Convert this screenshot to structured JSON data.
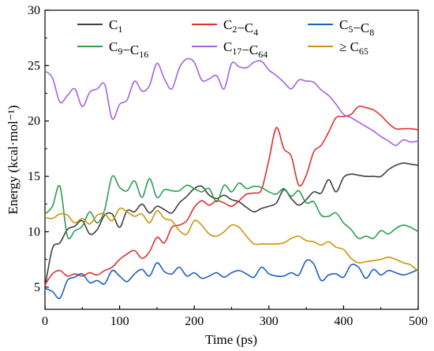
{
  "chart_data": {
    "type": "line",
    "title": "",
    "xlabel": "Time (ps)",
    "ylabel": "Energy (kcal·mol⁻¹)",
    "xlim": [
      0,
      500
    ],
    "ylim": [
      3,
      30
    ],
    "xticks": [
      "0",
      "100",
      "200",
      "300",
      "400",
      "500"
    ],
    "yticks": [
      "5",
      "10",
      "15",
      "20",
      "25",
      "30"
    ],
    "grid": false,
    "legend": "top",
    "series": [
      {
        "name": "C1",
        "label_main": "C",
        "label_sub1": "1",
        "color": "#404040",
        "x": [
          0,
          10,
          20,
          30,
          40,
          50,
          60,
          70,
          80,
          90,
          100,
          110,
          120,
          130,
          140,
          150,
          160,
          170,
          180,
          190,
          200,
          210,
          220,
          230,
          240,
          250,
          260,
          270,
          280,
          290,
          300,
          310,
          320,
          330,
          340,
          350,
          360,
          370,
          380,
          390,
          400,
          410,
          420,
          430,
          440,
          450,
          460,
          470,
          480,
          490,
          500
        ],
        "y": [
          5.0,
          8.5,
          9.0,
          10.2,
          10.5,
          11.0,
          9.8,
          10.2,
          11.5,
          11.6,
          10.4,
          11.9,
          11.8,
          12.5,
          11.7,
          12.3,
          12.0,
          11.7,
          12.6,
          13.2,
          13.9,
          14.1,
          13.3,
          13.0,
          13.3,
          12.9,
          12.7,
          12.2,
          11.8,
          12.1,
          12.3,
          12.6,
          13.8,
          13.0,
          12.4,
          12.9,
          13.6,
          13.5,
          14.7,
          13.6,
          14.9,
          15.2,
          15.1,
          15.0,
          15.0,
          15.0,
          15.6,
          16.0,
          16.2,
          16.1,
          16.0
        ]
      },
      {
        "name": "C2–C4",
        "label_main": "C",
        "label_sub1": "2",
        "label_mid": "−C",
        "label_sub2": "4",
        "color": "#e03030",
        "x": [
          0,
          10,
          20,
          30,
          40,
          50,
          60,
          70,
          80,
          90,
          100,
          110,
          120,
          130,
          140,
          150,
          160,
          170,
          180,
          190,
          200,
          210,
          220,
          230,
          240,
          250,
          260,
          270,
          280,
          290,
          300,
          310,
          320,
          330,
          340,
          350,
          360,
          370,
          380,
          390,
          400,
          410,
          420,
          430,
          440,
          450,
          460,
          470,
          480,
          490,
          500
        ],
        "y": [
          5.2,
          6.2,
          6.5,
          6.0,
          6.2,
          6.0,
          6.3,
          6.1,
          6.5,
          6.8,
          7.5,
          8.0,
          8.3,
          7.6,
          8.2,
          9.5,
          9.0,
          10.4,
          10.6,
          11.0,
          12.2,
          12.8,
          12.4,
          12.8,
          12.6,
          12.3,
          12.8,
          13.4,
          13.5,
          13.8,
          16.5,
          19.4,
          17.5,
          16.8,
          14.2,
          15.1,
          17.2,
          17.8,
          19.0,
          20.3,
          20.4,
          20.6,
          21.3,
          21.2,
          21.0,
          20.5,
          19.8,
          19.3,
          19.3,
          19.3,
          19.2
        ]
      },
      {
        "name": "C5–C8",
        "label_main": "C",
        "label_sub1": "5",
        "label_mid": "−C",
        "label_sub2": "8",
        "color": "#1f5fbf",
        "x": [
          0,
          10,
          20,
          30,
          40,
          50,
          60,
          70,
          80,
          90,
          100,
          110,
          120,
          130,
          140,
          150,
          160,
          170,
          180,
          190,
          200,
          210,
          220,
          230,
          240,
          250,
          260,
          270,
          280,
          290,
          300,
          310,
          320,
          330,
          340,
          350,
          360,
          370,
          380,
          390,
          400,
          410,
          420,
          430,
          440,
          450,
          460,
          470,
          480,
          490,
          500
        ],
        "y": [
          4.9,
          4.6,
          4.0,
          5.6,
          5.9,
          6.2,
          5.4,
          5.6,
          5.3,
          6.5,
          6.0,
          5.5,
          6.2,
          6.6,
          6.0,
          7.2,
          6.4,
          6.2,
          6.8,
          6.0,
          6.3,
          5.8,
          6.0,
          6.3,
          5.9,
          6.3,
          6.5,
          6.2,
          5.9,
          6.8,
          6.2,
          6.0,
          6.0,
          6.3,
          6.1,
          7.4,
          7.1,
          5.6,
          6.1,
          6.2,
          5.9,
          7.0,
          6.8,
          5.8,
          6.6,
          6.1,
          6.5,
          6.3,
          6.1,
          6.3,
          6.6
        ]
      },
      {
        "name": "C9–C16",
        "label_main": "C",
        "label_sub1": "9",
        "label_mid": "−C",
        "label_sub2": "16",
        "color": "#2e9e4f",
        "x": [
          0,
          10,
          20,
          30,
          40,
          50,
          60,
          70,
          80,
          90,
          100,
          110,
          120,
          130,
          140,
          150,
          160,
          170,
          180,
          190,
          200,
          210,
          220,
          230,
          240,
          250,
          260,
          270,
          280,
          290,
          300,
          310,
          320,
          330,
          340,
          350,
          360,
          370,
          380,
          390,
          400,
          410,
          420,
          430,
          440,
          450,
          460,
          470,
          480,
          490,
          500
        ],
        "y": [
          11.6,
          12.3,
          14.1,
          9.6,
          10.1,
          10.5,
          11.8,
          10.8,
          12.0,
          15.0,
          14.0,
          13.7,
          14.6,
          13.1,
          14.8,
          13.1,
          13.8,
          13.7,
          13.7,
          14.2,
          13.9,
          13.6,
          13.9,
          12.7,
          14.2,
          13.6,
          14.4,
          13.9,
          14.1,
          14.0,
          13.6,
          13.4,
          13.9,
          13.2,
          13.7,
          12.6,
          12.7,
          11.5,
          11.4,
          11.7,
          10.8,
          10.2,
          9.4,
          9.6,
          9.4,
          10.1,
          9.8,
          10.3,
          10.6,
          10.4,
          10.0
        ]
      },
      {
        "name": "C17–C64",
        "label_main": "C",
        "label_sub1": "17",
        "label_mid": "−C",
        "label_sub2": "64",
        "color": "#a463e0",
        "x": [
          0,
          10,
          20,
          30,
          40,
          50,
          60,
          70,
          80,
          90,
          100,
          110,
          120,
          130,
          140,
          150,
          160,
          170,
          180,
          190,
          200,
          210,
          220,
          230,
          240,
          250,
          260,
          270,
          280,
          290,
          300,
          310,
          320,
          330,
          340,
          350,
          360,
          370,
          380,
          390,
          400,
          410,
          420,
          430,
          440,
          450,
          460,
          470,
          480,
          490,
          500
        ],
        "y": [
          24.5,
          23.9,
          21.7,
          22.3,
          22.9,
          21.3,
          22.6,
          22.9,
          23.3,
          20.2,
          21.5,
          21.9,
          23.6,
          22.7,
          23.2,
          25.2,
          23.8,
          22.9,
          24.8,
          25.6,
          25.3,
          23.7,
          23.8,
          24.1,
          22.9,
          25.2,
          24.9,
          24.8,
          25.3,
          25.4,
          24.6,
          24.1,
          23.5,
          22.9,
          23.7,
          23.6,
          23.5,
          22.8,
          22.3,
          21.5,
          20.6,
          20.3,
          19.9,
          19.5,
          19.1,
          18.6,
          18.2,
          17.8,
          18.3,
          18.1,
          18.2
        ]
      },
      {
        "name": "≥ C65",
        "label_main": "≥ C",
        "label_sub1": "65",
        "color": "#c9950c",
        "x": [
          0,
          10,
          20,
          30,
          40,
          50,
          60,
          70,
          80,
          90,
          100,
          110,
          120,
          130,
          140,
          150,
          160,
          170,
          180,
          190,
          200,
          210,
          220,
          230,
          240,
          250,
          260,
          270,
          280,
          290,
          300,
          310,
          320,
          330,
          340,
          350,
          360,
          370,
          380,
          390,
          400,
          410,
          420,
          430,
          440,
          450,
          460,
          470,
          480,
          490,
          500
        ],
        "y": [
          11.3,
          11.2,
          11.6,
          11.5,
          10.8,
          11.2,
          10.7,
          11.5,
          11.6,
          11.0,
          12.1,
          11.8,
          11.4,
          11.6,
          10.8,
          11.9,
          11.2,
          11.0,
          10.1,
          9.8,
          11.0,
          10.6,
          9.8,
          9.6,
          10.0,
          10.6,
          10.4,
          9.6,
          8.9,
          8.9,
          8.9,
          8.9,
          9.0,
          9.4,
          9.6,
          9.2,
          9.1,
          8.8,
          9.1,
          8.6,
          8.4,
          7.6,
          7.2,
          7.3,
          7.4,
          7.5,
          7.7,
          7.5,
          7.2,
          7.0,
          6.4
        ]
      }
    ]
  }
}
